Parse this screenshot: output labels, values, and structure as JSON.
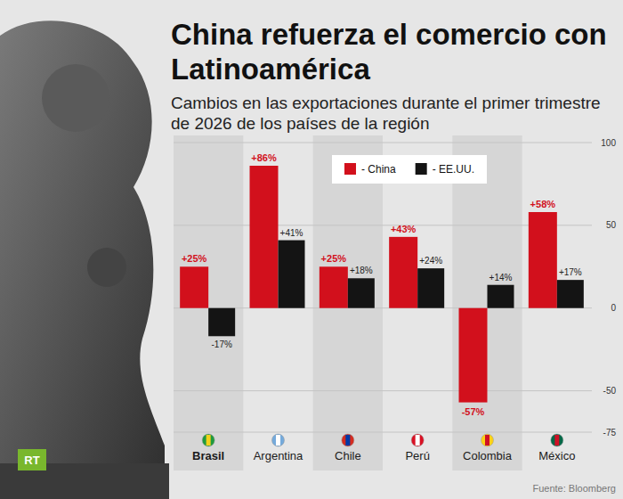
{
  "chart_data": {
    "type": "bar",
    "title": "China refuerza el comercio con Latinoamérica",
    "subtitle": "Cambios en las exportaciones durante el primer trimestre de 2026 de los países de la región",
    "source": "Fuente: Bloomberg",
    "logo": "RT",
    "categories": [
      "Brasil",
      "Argentina",
      "Chile",
      "Perú",
      "Colombia",
      "México"
    ],
    "series": [
      {
        "name": "- China",
        "color": "#d2101c",
        "values": [
          25,
          86,
          25,
          43,
          -57,
          58
        ],
        "value_labels": [
          "+25%",
          "+86%",
          "+25%",
          "+43%",
          "-57%",
          "+58%"
        ]
      },
      {
        "name": "- EE.UU.",
        "color": "#141414",
        "values": [
          -17,
          41,
          18,
          24,
          14,
          17
        ],
        "value_labels": [
          "-17%",
          "+41%",
          "+18%",
          "+24%",
          "+14%",
          "+17%"
        ]
      }
    ],
    "ylim": [
      -75,
      100
    ],
    "yticks": [
      -75,
      -50,
      0,
      50,
      100
    ],
    "grid": true,
    "legend": "top",
    "data_labels": true
  }
}
